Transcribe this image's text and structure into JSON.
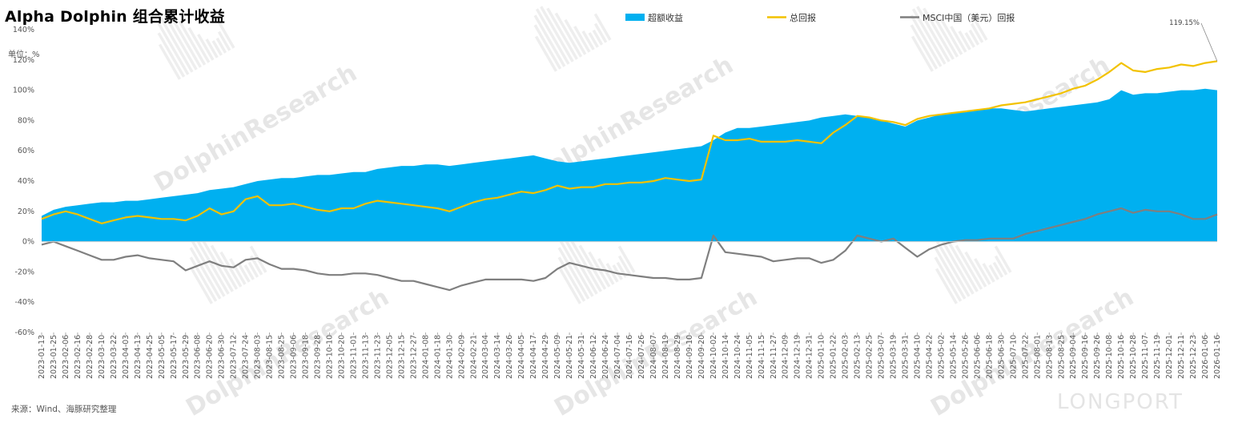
{
  "title": "Alpha Dolphin 组合累计收益",
  "unit_label": "单位：%",
  "source_label": "来源：Wind、海豚研究整理",
  "watermarks": [
    "DolphinResearch",
    "LONGPORT"
  ],
  "colors": {
    "excess": "#00b0f0",
    "total": "#f2c200",
    "msci": "#7f7f7f"
  },
  "chart_data": {
    "type": "area",
    "title": "Alpha Dolphin 组合累计收益",
    "ylabel": "单位：%",
    "ylim": [
      -60,
      140
    ],
    "yticks": [
      -60,
      -40,
      -20,
      0,
      20,
      40,
      60,
      80,
      100,
      120,
      140
    ],
    "ytick_labels": [
      "-60%",
      "-40%",
      "-20%",
      "0%",
      "20%",
      "40%",
      "60%",
      "80%",
      "100%",
      "120%",
      "140%"
    ],
    "x_tick_labels": [
      "2023-01-13",
      "2023-01-25",
      "2023-02-06",
      "2023-02-16",
      "2023-02-28",
      "2023-03-10",
      "2023-03-22",
      "2023-04-03",
      "2023-04-13",
      "2023-04-25",
      "2023-05-05",
      "2023-05-17",
      "2023-05-29",
      "2023-06-08",
      "2023-06-20",
      "2023-06-30",
      "2023-07-12",
      "2023-07-24",
      "2023-08-03",
      "2023-08-15",
      "2023-08-25",
      "2023-09-06",
      "2023-09-18",
      "2023-09-28",
      "2023-10-10",
      "2023-10-20",
      "2023-11-01",
      "2023-11-13",
      "2023-11-23",
      "2023-12-05",
      "2023-12-15",
      "2023-12-27",
      "2024-01-08",
      "2024-01-18",
      "2024-01-30",
      "2024-02-09",
      "2024-02-21",
      "2024-03-04",
      "2024-03-14",
      "2024-03-26",
      "2024-04-05",
      "2024-04-17",
      "2024-04-29",
      "2024-05-09",
      "2024-05-21",
      "2024-05-31",
      "2024-06-12",
      "2024-06-24",
      "2024-07-04",
      "2024-07-16",
      "2024-07-26",
      "2024-08-07",
      "2024-08-19",
      "2024-08-29",
      "2024-09-10",
      "2024-09-20",
      "2024-10-02",
      "2024-10-14",
      "2024-10-24",
      "2024-11-05",
      "2024-11-15",
      "2024-11-27",
      "2024-12-09",
      "2024-12-19",
      "2024-12-31",
      "2025-01-10",
      "2025-01-22",
      "2025-02-03",
      "2025-02-13",
      "2025-02-25",
      "2025-03-07",
      "2025-03-19",
      "2025-03-31",
      "2025-04-10",
      "2025-04-22",
      "2025-05-02",
      "2025-05-14",
      "2025-05-26",
      "2025-06-06",
      "2025-06-18",
      "2025-06-30",
      "2025-07-10",
      "2025-07-22",
      "2025-08-01",
      "2025-08-13",
      "2025-08-25",
      "2025-09-04",
      "2025-09-16",
      "2025-09-26",
      "2025-10-08",
      "2025-10-16",
      "2025-10-28",
      "2025-11-07",
      "2025-11-19",
      "2025-12-01",
      "2025-12-11",
      "2025-12-23",
      "2026-01-06",
      "2026-01-16"
    ],
    "legend_position": "top",
    "annotation": {
      "label": "119.15%",
      "at_x": "2026-01-16",
      "value": 119.15
    },
    "series": [
      {
        "name": "超额收益",
        "type": "area",
        "color": "#00b0f0",
        "values": [
          17,
          21,
          23,
          24,
          25,
          26,
          26,
          27,
          27,
          28,
          29,
          30,
          31,
          32,
          34,
          35,
          36,
          38,
          40,
          41,
          42,
          42,
          43,
          44,
          44,
          45,
          46,
          46,
          48,
          49,
          50,
          50,
          51,
          51,
          50,
          51,
          52,
          53,
          54,
          55,
          56,
          57,
          55,
          53,
          52,
          53,
          54,
          55,
          56,
          57,
          58,
          59,
          60,
          61,
          62,
          63,
          67,
          72,
          75,
          75,
          76,
          77,
          78,
          79,
          80,
          82,
          83,
          84,
          83,
          82,
          80,
          78,
          76,
          80,
          82,
          84,
          85,
          86,
          87,
          88,
          88,
          87,
          86,
          87,
          88,
          89,
          90,
          91,
          92,
          94,
          100,
          97,
          98,
          98,
          99,
          100,
          100,
          101,
          100
        ]
      },
      {
        "name": "总回报",
        "type": "line",
        "color": "#f2c200",
        "values": [
          15,
          18,
          20,
          18,
          15,
          12,
          14,
          16,
          17,
          16,
          15,
          15,
          14,
          17,
          22,
          18,
          20,
          28,
          30,
          24,
          24,
          25,
          23,
          21,
          20,
          22,
          22,
          25,
          27,
          26,
          25,
          24,
          23,
          22,
          20,
          23,
          26,
          28,
          29,
          31,
          33,
          32,
          34,
          37,
          35,
          36,
          36,
          38,
          38,
          39,
          39,
          40,
          42,
          41,
          40,
          41,
          70,
          67,
          67,
          68,
          66,
          66,
          66,
          67,
          66,
          65,
          72,
          77,
          83,
          82,
          80,
          79,
          77,
          81,
          83,
          84,
          85,
          86,
          87,
          88,
          90,
          91,
          92,
          94,
          96,
          98,
          101,
          103,
          107,
          112,
          118,
          113,
          112,
          114,
          115,
          117,
          116,
          118,
          119.15
        ]
      },
      {
        "name": "MSCI中国（美元）回报",
        "type": "line",
        "color": "#7f7f7f",
        "values": [
          -2,
          0,
          -3,
          -6,
          -9,
          -12,
          -12,
          -10,
          -9,
          -11,
          -12,
          -13,
          -19,
          -16,
          -13,
          -16,
          -17,
          -12,
          -11,
          -15,
          -18,
          -18,
          -19,
          -21,
          -22,
          -22,
          -21,
          -21,
          -22,
          -24,
          -26,
          -26,
          -28,
          -30,
          -32,
          -29,
          -27,
          -25,
          -25,
          -25,
          -25,
          -26,
          -24,
          -18,
          -14,
          -16,
          -18,
          -19,
          -21,
          -22,
          -23,
          -24,
          -24,
          -25,
          -25,
          -24,
          4,
          -7,
          -8,
          -9,
          -10,
          -13,
          -12,
          -11,
          -11,
          -14,
          -12,
          -6,
          4,
          2,
          0,
          2,
          -4,
          -10,
          -5,
          -2,
          0,
          1,
          1,
          2,
          2,
          2,
          5,
          7,
          9,
          11,
          13,
          15,
          18,
          20,
          22,
          19,
          21,
          20,
          20,
          18,
          15,
          15,
          18
        ]
      }
    ]
  }
}
